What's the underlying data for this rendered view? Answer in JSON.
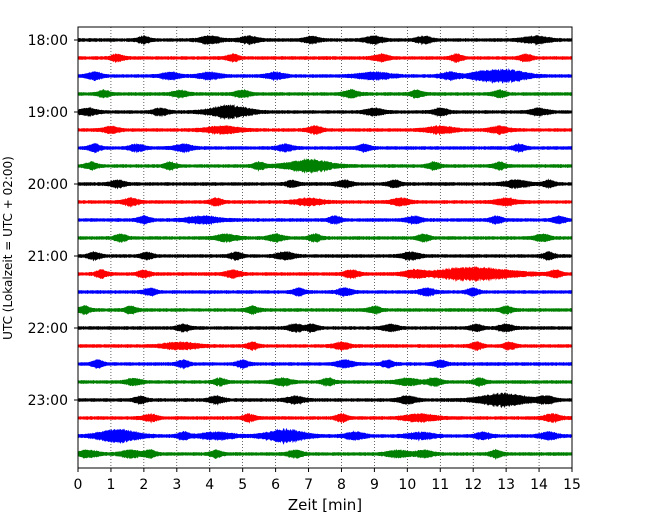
{
  "chart_data": {
    "type": "line",
    "title": "",
    "xlabel": "Zeit  [min]",
    "ylabel": "UTC (Lokalzeit = UTC + 02:00)",
    "xlim": [
      0,
      15
    ],
    "x_ticks": [
      "0",
      "1",
      "2",
      "3",
      "4",
      "5",
      "6",
      "7",
      "8",
      "9",
      "10",
      "11",
      "12",
      "13",
      "14",
      "15"
    ],
    "y_tick_labels": [
      "18:00",
      "19:00",
      "20:00",
      "21:00",
      "22:00",
      "23:00"
    ],
    "grid_x": true,
    "trace_interval_minutes": 15,
    "trace_colors": [
      "#000000",
      "#ff0000",
      "#0000ff",
      "#008000"
    ],
    "traces": [
      {
        "start": "18:00",
        "color": "#000000",
        "bursts": [
          [
            4.0,
            0.6
          ],
          [
            5.2,
            0.5
          ],
          [
            7.1,
            0.4
          ],
          [
            9.0,
            0.5
          ],
          [
            10.5,
            0.4
          ],
          [
            13.9,
            0.8
          ],
          [
            2.0,
            0.3
          ]
        ]
      },
      {
        "start": "18:15",
        "color": "#ff0000",
        "bursts": [
          [
            1.2,
            0.3
          ],
          [
            4.7,
            0.3
          ],
          [
            9.2,
            0.4
          ],
          [
            11.5,
            0.3
          ],
          [
            13.6,
            0.3
          ]
        ]
      },
      {
        "start": "18:30",
        "color": "#0000ff",
        "bursts": [
          [
            0.5,
            0.4
          ],
          [
            2.8,
            0.5
          ],
          [
            4.0,
            0.6
          ],
          [
            6.0,
            0.5
          ],
          [
            9.0,
            1.0
          ],
          [
            13.0,
            1.2
          ],
          [
            11.3,
            0.5
          ],
          [
            12.2,
            0.6
          ]
        ]
      },
      {
        "start": "18:45",
        "color": "#008000",
        "bursts": [
          [
            0.8,
            0.3
          ],
          [
            3.1,
            0.4
          ],
          [
            5.0,
            0.4
          ],
          [
            8.3,
            0.4
          ],
          [
            10.3,
            0.3
          ],
          [
            12.8,
            0.3
          ]
        ]
      },
      {
        "start": "19:00",
        "color": "#000000",
        "bursts": [
          [
            0.3,
            0.5
          ],
          [
            2.5,
            0.4
          ],
          [
            4.6,
            1.2
          ],
          [
            9.0,
            0.5
          ],
          [
            11.0,
            0.4
          ],
          [
            14.0,
            0.5
          ]
        ]
      },
      {
        "start": "19:15",
        "color": "#ff0000",
        "bursts": [
          [
            1.0,
            0.4
          ],
          [
            4.4,
            1.0
          ],
          [
            7.2,
            0.4
          ],
          [
            11.0,
            0.8
          ],
          [
            12.8,
            0.5
          ]
        ]
      },
      {
        "start": "19:30",
        "color": "#0000ff",
        "bursts": [
          [
            0.5,
            0.3
          ],
          [
            1.8,
            0.4
          ],
          [
            3.2,
            0.5
          ],
          [
            6.3,
            0.4
          ],
          [
            8.7,
            0.3
          ],
          [
            13.4,
            0.3
          ]
        ]
      },
      {
        "start": "19:45",
        "color": "#008000",
        "bursts": [
          [
            0.4,
            0.3
          ],
          [
            2.8,
            0.3
          ],
          [
            5.5,
            0.3
          ],
          [
            7.0,
            1.3
          ],
          [
            10.8,
            0.3
          ],
          [
            12.8,
            0.3
          ]
        ]
      },
      {
        "start": "20:00",
        "color": "#000000",
        "bursts": [
          [
            1.2,
            0.4
          ],
          [
            6.5,
            0.3
          ],
          [
            8.1,
            0.4
          ],
          [
            9.6,
            0.3
          ],
          [
            13.3,
            0.7
          ],
          [
            14.3,
            0.3
          ]
        ]
      },
      {
        "start": "20:15",
        "color": "#ff0000",
        "bursts": [
          [
            1.6,
            0.4
          ],
          [
            4.2,
            0.3
          ],
          [
            7.0,
            0.8
          ],
          [
            9.8,
            0.5
          ],
          [
            13.0,
            0.6
          ]
        ]
      },
      {
        "start": "20:30",
        "color": "#0000ff",
        "bursts": [
          [
            2.0,
            0.3
          ],
          [
            3.8,
            1.0
          ],
          [
            7.8,
            0.3
          ],
          [
            10.2,
            0.4
          ],
          [
            12.7,
            0.3
          ],
          [
            14.6,
            0.3
          ]
        ]
      },
      {
        "start": "20:45",
        "color": "#008000",
        "bursts": [
          [
            1.3,
            0.3
          ],
          [
            4.5,
            0.6
          ],
          [
            6.0,
            0.4
          ],
          [
            7.2,
            0.3
          ],
          [
            10.5,
            0.3
          ],
          [
            14.1,
            0.4
          ]
        ]
      },
      {
        "start": "21:00",
        "color": "#000000",
        "bursts": [
          [
            0.5,
            0.3
          ],
          [
            2.1,
            0.3
          ],
          [
            4.8,
            0.3
          ],
          [
            6.3,
            0.5
          ],
          [
            10.1,
            0.5
          ],
          [
            14.3,
            0.3
          ]
        ]
      },
      {
        "start": "21:15",
        "color": "#ff0000",
        "bursts": [
          [
            0.7,
            0.3
          ],
          [
            2.0,
            0.3
          ],
          [
            4.7,
            0.4
          ],
          [
            8.3,
            0.4
          ],
          [
            10.2,
            0.5
          ],
          [
            12.0,
            2.5
          ],
          [
            14.5,
            0.3
          ]
        ]
      },
      {
        "start": "21:30",
        "color": "#0000ff",
        "bursts": [
          [
            2.2,
            0.3
          ],
          [
            6.7,
            0.3
          ],
          [
            8.1,
            0.4
          ],
          [
            10.6,
            0.4
          ],
          [
            12.0,
            0.3
          ]
        ]
      },
      {
        "start": "21:45",
        "color": "#008000",
        "bursts": [
          [
            0.2,
            0.3
          ],
          [
            1.6,
            0.3
          ],
          [
            5.3,
            0.3
          ],
          [
            9.0,
            0.3
          ],
          [
            13.0,
            0.3
          ]
        ]
      },
      {
        "start": "22:00",
        "color": "#000000",
        "bursts": [
          [
            3.2,
            0.3
          ],
          [
            6.6,
            0.4
          ],
          [
            7.1,
            0.3
          ],
          [
            9.5,
            0.4
          ],
          [
            12.1,
            0.3
          ],
          [
            13.0,
            0.4
          ]
        ]
      },
      {
        "start": "22:15",
        "color": "#ff0000",
        "bursts": [
          [
            3.1,
            1.0
          ],
          [
            5.3,
            0.3
          ],
          [
            8.0,
            0.4
          ],
          [
            12.1,
            0.3
          ],
          [
            13.1,
            0.3
          ]
        ]
      },
      {
        "start": "22:30",
        "color": "#0000ff",
        "bursts": [
          [
            0.6,
            0.3
          ],
          [
            3.2,
            0.3
          ],
          [
            5.0,
            0.3
          ],
          [
            8.1,
            0.5
          ],
          [
            9.4,
            0.3
          ],
          [
            11.0,
            0.3
          ]
        ]
      },
      {
        "start": "22:45",
        "color": "#008000",
        "bursts": [
          [
            1.7,
            0.4
          ],
          [
            4.3,
            0.3
          ],
          [
            6.2,
            0.5
          ],
          [
            7.6,
            0.3
          ],
          [
            10.0,
            0.6
          ],
          [
            10.8,
            0.4
          ],
          [
            12.2,
            0.3
          ]
        ]
      },
      {
        "start": "23:00",
        "color": "#000000",
        "bursts": [
          [
            1.9,
            0.3
          ],
          [
            4.2,
            0.4
          ],
          [
            6.6,
            0.5
          ],
          [
            10.0,
            0.5
          ],
          [
            12.9,
            1.4
          ],
          [
            14.2,
            0.5
          ]
        ]
      },
      {
        "start": "23:15",
        "color": "#ff0000",
        "bursts": [
          [
            2.2,
            0.4
          ],
          [
            5.2,
            0.3
          ],
          [
            8.0,
            0.3
          ],
          [
            10.4,
            1.0
          ],
          [
            14.4,
            0.5
          ]
        ]
      },
      {
        "start": "23:30",
        "color": "#0000ff",
        "bursts": [
          [
            1.2,
            1.2
          ],
          [
            3.2,
            0.3
          ],
          [
            4.2,
            1.0
          ],
          [
            6.3,
            1.2
          ],
          [
            8.4,
            0.6
          ],
          [
            10.4,
            0.8
          ],
          [
            12.3,
            0.4
          ],
          [
            14.3,
            0.5
          ]
        ]
      },
      {
        "start": "23:45",
        "color": "#008000",
        "bursts": [
          [
            0.3,
            0.6
          ],
          [
            1.6,
            0.6
          ],
          [
            2.2,
            0.3
          ],
          [
            4.2,
            0.3
          ],
          [
            6.6,
            0.4
          ],
          [
            9.7,
            0.6
          ],
          [
            10.5,
            0.5
          ],
          [
            12.7,
            0.3
          ]
        ]
      }
    ]
  }
}
